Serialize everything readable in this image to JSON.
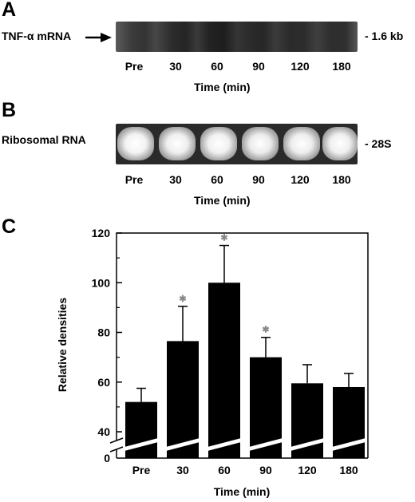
{
  "panels": {
    "a": {
      "letter": "A",
      "left_label": "TNF-α mRNA",
      "right_label": "- 1.6 kb",
      "lanes": [
        "Pre",
        "30",
        "60",
        "90",
        "120",
        "180"
      ],
      "xlabel": "Time (min)"
    },
    "b": {
      "letter": "B",
      "left_label": "Ribosomal RNA",
      "right_label": "- 28S",
      "lanes": [
        "Pre",
        "30",
        "60",
        "90",
        "120",
        "180"
      ],
      "xlabel": "Time (min)"
    },
    "c": {
      "letter": "C"
    }
  },
  "chart_data": {
    "type": "bar",
    "title": "",
    "categories": [
      "Pre",
      "30",
      "60",
      "90",
      "120",
      "180"
    ],
    "series": [
      {
        "values": [
          52,
          76.5,
          100,
          70,
          59.5,
          58
        ],
        "error": [
          5.5,
          14,
          15,
          8,
          7.5,
          5.5
        ],
        "significant": [
          false,
          true,
          true,
          true,
          false,
          false
        ]
      }
    ],
    "xlabel": "Time (min)",
    "ylabel": "Relative densities",
    "ylim": [
      40,
      120
    ],
    "axis_break": true,
    "break_low_label": "0",
    "yticks": [
      "40",
      "60",
      "80",
      "100",
      "120"
    ],
    "significance_marker": "✱",
    "bar_color": "#000000",
    "grid": false
  }
}
